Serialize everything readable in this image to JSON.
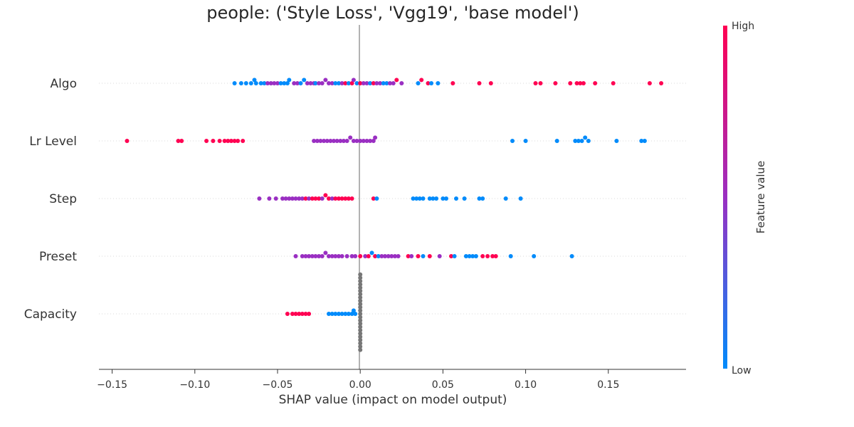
{
  "chart_data": {
    "type": "scatter",
    "subtype": "shap_beeswarm",
    "title": "people: ('Style Loss', 'Vgg19', 'base model')",
    "xlabel": "SHAP value (impact on model output)",
    "xlim": [
      -0.158,
      0.197
    ],
    "xticks": [
      -0.15,
      -0.1,
      -0.05,
      0.0,
      0.05,
      0.1,
      0.15
    ],
    "xtick_labels": [
      "−0.15",
      "−0.10",
      "−0.05",
      "0.00",
      "0.05",
      "0.10",
      "0.15"
    ],
    "features": [
      "Algo",
      "Lr Level",
      "Step",
      "Preset",
      "Capacity"
    ],
    "colorbar": {
      "title": "Feature value",
      "high_label": "High",
      "low_label": "Low",
      "low_color": "#008bfb",
      "mid_color": "#9a2fc2",
      "high_color": "#ff0052"
    },
    "series": [
      {
        "name": "Algo",
        "points": [
          [
            -0.076,
            0.0
          ],
          [
            -0.072,
            0.0
          ],
          [
            -0.069,
            0.0
          ],
          [
            -0.066,
            0.0
          ],
          [
            -0.064,
            0.0
          ],
          [
            -0.063,
            0.0
          ],
          [
            -0.06,
            0.0
          ],
          [
            -0.058,
            0.0
          ],
          [
            -0.056,
            0.5
          ],
          [
            -0.054,
            0.5
          ],
          [
            -0.052,
            0.5
          ],
          [
            -0.05,
            0.5
          ],
          [
            -0.048,
            0.0
          ],
          [
            -0.046,
            0.0
          ],
          [
            -0.044,
            0.0
          ],
          [
            -0.043,
            0.0
          ],
          [
            -0.04,
            0.5
          ],
          [
            -0.038,
            0.5
          ],
          [
            -0.036,
            0.0
          ],
          [
            -0.034,
            0.0
          ],
          [
            -0.032,
            0.5
          ],
          [
            -0.03,
            0.5
          ],
          [
            -0.028,
            0.5
          ],
          [
            -0.027,
            0.0
          ],
          [
            -0.025,
            0.5
          ],
          [
            -0.023,
            0.5
          ],
          [
            -0.021,
            0.5
          ],
          [
            -0.019,
            0.5
          ],
          [
            -0.017,
            0.5
          ],
          [
            -0.015,
            0.0
          ],
          [
            -0.013,
            0.0
          ],
          [
            -0.011,
            0.5
          ],
          [
            -0.009,
            1.0
          ],
          [
            -0.007,
            0.0
          ],
          [
            -0.005,
            1.0
          ],
          [
            -0.004,
            0.5
          ],
          [
            -0.002,
            0.0
          ],
          [
            0.0,
            1.0
          ],
          [
            0.002,
            0.5
          ],
          [
            0.004,
            0.5
          ],
          [
            0.006,
            0.0
          ],
          [
            0.008,
            1.0
          ],
          [
            0.01,
            0.5
          ],
          [
            0.012,
            0.5
          ],
          [
            0.014,
            0.0
          ],
          [
            0.016,
            0.0
          ],
          [
            0.018,
            0.5
          ],
          [
            0.02,
            0.5
          ],
          [
            0.022,
            1.0
          ],
          [
            0.025,
            0.5
          ],
          [
            0.035,
            0.0
          ],
          [
            0.037,
            1.0
          ],
          [
            0.041,
            1.0
          ],
          [
            0.043,
            0.0
          ],
          [
            0.047,
            0.0
          ],
          [
            0.056,
            1.0
          ],
          [
            0.072,
            1.0
          ],
          [
            0.079,
            1.0
          ],
          [
            0.106,
            1.0
          ],
          [
            0.109,
            1.0
          ],
          [
            0.118,
            1.0
          ],
          [
            0.127,
            1.0
          ],
          [
            0.131,
            1.0
          ],
          [
            0.133,
            1.0
          ],
          [
            0.135,
            1.0
          ],
          [
            0.142,
            1.0
          ],
          [
            0.153,
            1.0
          ],
          [
            0.175,
            1.0
          ],
          [
            0.182,
            1.0
          ]
        ]
      },
      {
        "name": "Lr Level",
        "points": [
          [
            -0.141,
            1.0
          ],
          [
            -0.11,
            1.0
          ],
          [
            -0.108,
            1.0
          ],
          [
            -0.093,
            1.0
          ],
          [
            -0.089,
            1.0
          ],
          [
            -0.085,
            1.0
          ],
          [
            -0.082,
            1.0
          ],
          [
            -0.08,
            1.0
          ],
          [
            -0.078,
            1.0
          ],
          [
            -0.076,
            1.0
          ],
          [
            -0.074,
            1.0
          ],
          [
            -0.071,
            1.0
          ],
          [
            -0.028,
            0.5
          ],
          [
            -0.026,
            0.5
          ],
          [
            -0.024,
            0.5
          ],
          [
            -0.022,
            0.5
          ],
          [
            -0.02,
            0.5
          ],
          [
            -0.018,
            0.5
          ],
          [
            -0.016,
            0.5
          ],
          [
            -0.014,
            0.5
          ],
          [
            -0.012,
            0.5
          ],
          [
            -0.01,
            0.5
          ],
          [
            -0.008,
            0.5
          ],
          [
            -0.006,
            0.5
          ],
          [
            -0.004,
            0.5
          ],
          [
            -0.002,
            0.5
          ],
          [
            0.0,
            0.5
          ],
          [
            0.002,
            0.5
          ],
          [
            0.004,
            0.5
          ],
          [
            0.006,
            0.5
          ],
          [
            0.008,
            0.5
          ],
          [
            0.009,
            0.5
          ],
          [
            0.092,
            0.0
          ],
          [
            0.1,
            0.0
          ],
          [
            0.119,
            0.0
          ],
          [
            0.13,
            0.0
          ],
          [
            0.132,
            0.0
          ],
          [
            0.134,
            0.0
          ],
          [
            0.136,
            0.0
          ],
          [
            0.138,
            0.0
          ],
          [
            0.155,
            0.0
          ],
          [
            0.17,
            0.0
          ],
          [
            0.172,
            0.0
          ]
        ]
      },
      {
        "name": "Step",
        "points": [
          [
            -0.061,
            0.5
          ],
          [
            -0.055,
            0.5
          ],
          [
            -0.051,
            0.5
          ],
          [
            -0.047,
            0.5
          ],
          [
            -0.045,
            0.5
          ],
          [
            -0.043,
            0.5
          ],
          [
            -0.041,
            0.5
          ],
          [
            -0.039,
            0.5
          ],
          [
            -0.037,
            0.5
          ],
          [
            -0.035,
            0.5
          ],
          [
            -0.033,
            1.0
          ],
          [
            -0.031,
            0.5
          ],
          [
            -0.029,
            1.0
          ],
          [
            -0.027,
            1.0
          ],
          [
            -0.025,
            1.0
          ],
          [
            -0.023,
            0.5
          ],
          [
            -0.021,
            1.0
          ],
          [
            -0.019,
            1.0
          ],
          [
            -0.017,
            0.5
          ],
          [
            -0.015,
            1.0
          ],
          [
            -0.013,
            1.0
          ],
          [
            -0.011,
            1.0
          ],
          [
            -0.009,
            1.0
          ],
          [
            -0.007,
            1.0
          ],
          [
            -0.005,
            1.0
          ],
          [
            0.008,
            1.0
          ],
          [
            0.01,
            0.0
          ],
          [
            0.032,
            0.0
          ],
          [
            0.034,
            0.0
          ],
          [
            0.036,
            0.0
          ],
          [
            0.038,
            0.0
          ],
          [
            0.042,
            0.0
          ],
          [
            0.044,
            0.0
          ],
          [
            0.046,
            0.0
          ],
          [
            0.05,
            0.0
          ],
          [
            0.052,
            0.0
          ],
          [
            0.058,
            0.0
          ],
          [
            0.063,
            0.0
          ],
          [
            0.072,
            0.0
          ],
          [
            0.074,
            0.0
          ],
          [
            0.088,
            0.0
          ],
          [
            0.097,
            0.0
          ]
        ]
      },
      {
        "name": "Preset",
        "points": [
          [
            -0.039,
            0.5
          ],
          [
            -0.035,
            0.5
          ],
          [
            -0.033,
            0.5
          ],
          [
            -0.031,
            0.5
          ],
          [
            -0.029,
            0.5
          ],
          [
            -0.027,
            0.5
          ],
          [
            -0.025,
            0.5
          ],
          [
            -0.023,
            0.5
          ],
          [
            -0.021,
            0.5
          ],
          [
            -0.019,
            0.5
          ],
          [
            -0.017,
            0.5
          ],
          [
            -0.015,
            0.5
          ],
          [
            -0.013,
            0.5
          ],
          [
            -0.011,
            0.5
          ],
          [
            -0.008,
            0.5
          ],
          [
            -0.005,
            0.5
          ],
          [
            -0.003,
            0.5
          ],
          [
            0.0,
            1.0
          ],
          [
            0.003,
            0.5
          ],
          [
            0.005,
            1.0
          ],
          [
            0.007,
            0.0
          ],
          [
            0.009,
            1.0
          ],
          [
            0.011,
            0.0
          ],
          [
            0.013,
            0.5
          ],
          [
            0.015,
            0.5
          ],
          [
            0.017,
            0.5
          ],
          [
            0.019,
            0.5
          ],
          [
            0.021,
            0.5
          ],
          [
            0.023,
            0.5
          ],
          [
            0.029,
            1.0
          ],
          [
            0.031,
            0.5
          ],
          [
            0.035,
            1.0
          ],
          [
            0.038,
            0.0
          ],
          [
            0.042,
            1.0
          ],
          [
            0.048,
            0.5
          ],
          [
            0.055,
            1.0
          ],
          [
            0.057,
            0.0
          ],
          [
            0.064,
            0.0
          ],
          [
            0.066,
            0.0
          ],
          [
            0.068,
            0.0
          ],
          [
            0.07,
            0.0
          ],
          [
            0.074,
            1.0
          ],
          [
            0.077,
            1.0
          ],
          [
            0.08,
            1.0
          ],
          [
            0.082,
            1.0
          ],
          [
            0.091,
            0.0
          ],
          [
            0.105,
            0.0
          ],
          [
            0.128,
            0.0
          ]
        ]
      },
      {
        "name": "Capacity",
        "points": [
          [
            -0.044,
            1.0
          ],
          [
            -0.041,
            1.0
          ],
          [
            -0.039,
            1.0
          ],
          [
            -0.037,
            1.0
          ],
          [
            -0.035,
            1.0
          ],
          [
            -0.033,
            1.0
          ],
          [
            -0.031,
            1.0
          ],
          [
            -0.019,
            0.0
          ],
          [
            -0.017,
            0.0
          ],
          [
            -0.015,
            0.0
          ],
          [
            -0.013,
            0.0
          ],
          [
            -0.011,
            0.0
          ],
          [
            -0.009,
            0.0
          ],
          [
            -0.007,
            0.0
          ],
          [
            -0.005,
            0.0
          ],
          [
            -0.004,
            0.0
          ],
          [
            -0.003,
            0.0
          ],
          [
            0.0,
            null
          ],
          [
            0.0,
            null
          ],
          [
            0.0,
            null
          ],
          [
            0.0,
            null
          ],
          [
            0.0,
            null
          ],
          [
            0.0,
            null
          ],
          [
            0.0,
            null
          ],
          [
            0.0,
            null
          ],
          [
            0.0,
            null
          ],
          [
            0.0,
            null
          ],
          [
            0.0,
            null
          ],
          [
            0.0,
            null
          ],
          [
            0.0,
            null
          ],
          [
            0.0,
            null
          ],
          [
            0.0,
            null
          ],
          [
            0.0,
            null
          ],
          [
            0.0,
            null
          ],
          [
            0.0,
            null
          ],
          [
            0.0,
            null
          ],
          [
            0.0,
            null
          ],
          [
            0.0,
            null
          ],
          [
            0.0,
            null
          ],
          [
            0.0,
            null
          ],
          [
            0.0,
            null
          ]
        ]
      }
    ]
  }
}
